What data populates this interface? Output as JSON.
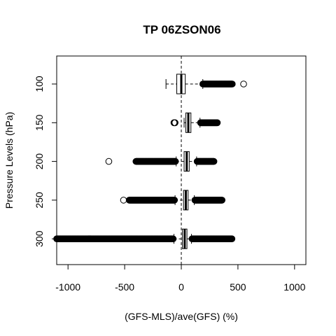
{
  "chart_data": {
    "type": "boxplot",
    "orientation": "horizontal",
    "title": "TP 06ZSON06",
    "xlabel": "(GFS-MLS)/ave(GFS) (%)",
    "ylabel": "Pressure Levels (hPa)",
    "xlim": [
      -1100,
      1100
    ],
    "x_ticks": [
      -1000,
      -500,
      0,
      500,
      1000
    ],
    "x_tick_labels": [
      "-1000",
      "-500",
      "0",
      "500",
      "1000"
    ],
    "reference_line": {
      "x": 0,
      "style": "dashed"
    },
    "grid": false,
    "legend": "none",
    "series": [
      {
        "name": "100",
        "whisker_low": -135,
        "q1": -40,
        "median": 0,
        "q3": 35,
        "whisker_high": 190,
        "outliers_low": [],
        "outliers_high_range": [
          190,
          450
        ],
        "outliers_high_extra": [
          550
        ]
      },
      {
        "name": "150",
        "whisker_low": 25,
        "q1": 40,
        "median": 62,
        "q3": 85,
        "whisker_high": 165,
        "outliers_low": [
          -55,
          -60,
          -65
        ],
        "outliers_high_range": [
          170,
          320
        ],
        "outliers_high_extra": []
      },
      {
        "name": "200",
        "whisker_low": -45,
        "q1": 25,
        "median": 48,
        "q3": 70,
        "whisker_high": 135,
        "outliers_low_range": [
          -400,
          -50
        ],
        "outliers_low_extra": [
          -640
        ],
        "outliers_high_range": [
          140,
          290
        ],
        "outliers_high_extra": []
      },
      {
        "name": "250",
        "whisker_low": -55,
        "q1": 20,
        "median": 40,
        "q3": 60,
        "whisker_high": 115,
        "outliers_low_range": [
          -460,
          -60
        ],
        "outliers_low_extra": [
          -510
        ],
        "outliers_high_range": [
          120,
          360
        ],
        "outliers_high_extra": []
      },
      {
        "name": "300",
        "whisker_low": -65,
        "q1": 10,
        "median": 30,
        "q3": 50,
        "whisker_high": 90,
        "outliers_low_range": [
          -1100,
          -70
        ],
        "outliers_low_extra": [],
        "outliers_high_range": [
          95,
          450
        ],
        "outliers_high_extra": []
      }
    ],
    "colors": {
      "foreground": "#000000",
      "background": "#ffffff"
    }
  }
}
